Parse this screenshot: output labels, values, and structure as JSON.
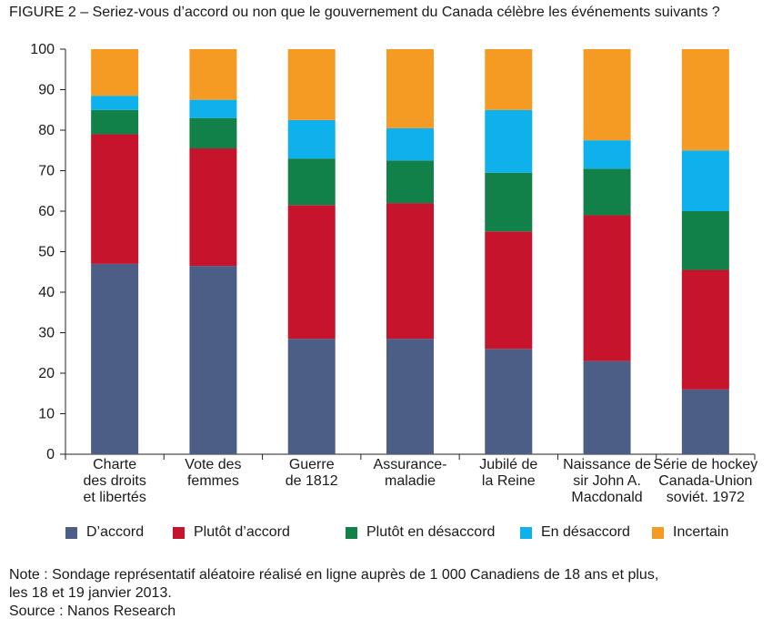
{
  "figure_title": "FIGURE 2 – Seriez-vous d’accord ou non que le gouvernement du Canada célèbre les événements suivants ?",
  "note_lines": [
    "Note : Sondage représentatif aléatoire réalisé en ligne auprès de 1 000 Canadiens de 18 ans et plus,",
    "les 18 et 19 janvier 2013.",
    "Source : Nanos Research"
  ],
  "chart_data": {
    "type": "bar",
    "stacked": true,
    "ylim": [
      0,
      100
    ],
    "yticks": [
      0,
      10,
      20,
      30,
      40,
      50,
      60,
      70,
      80,
      90,
      100
    ],
    "grid": false,
    "legend_position": "bottom",
    "categories": [
      [
        "Charte",
        "des droits",
        "et libertés"
      ],
      [
        "Vote des",
        "femmes"
      ],
      [
        "Guerre",
        "de 1812"
      ],
      [
        "Assurance-",
        "maladie"
      ],
      [
        "Jubilé de",
        "la Reine"
      ],
      [
        "Naissance de",
        "sir John A.",
        "Macdonald"
      ],
      [
        "Série de hockey",
        "Canada-Union",
        "soviét. 1972"
      ]
    ],
    "series": [
      {
        "name": "D’accord",
        "color": "#4d5e86",
        "values": [
          47,
          46.5,
          28.5,
          28.5,
          26,
          23,
          16
        ]
      },
      {
        "name": "Plutôt d’accord",
        "color": "#c5142b",
        "values": [
          32,
          29,
          33,
          33.5,
          29,
          36,
          29.5
        ]
      },
      {
        "name": "Plutôt en désaccord",
        "color": "#128049",
        "values": [
          6,
          7.5,
          11.5,
          10.5,
          14.5,
          11.5,
          14.5
        ]
      },
      {
        "name": "En désaccord",
        "color": "#0eb1ec",
        "values": [
          3.5,
          4.5,
          9.5,
          8,
          15.5,
          7,
          15
        ]
      },
      {
        "name": "Incertain",
        "color": "#f59a22",
        "values": [
          11.5,
          12.5,
          17.5,
          19.5,
          15,
          22.5,
          25
        ]
      }
    ]
  }
}
